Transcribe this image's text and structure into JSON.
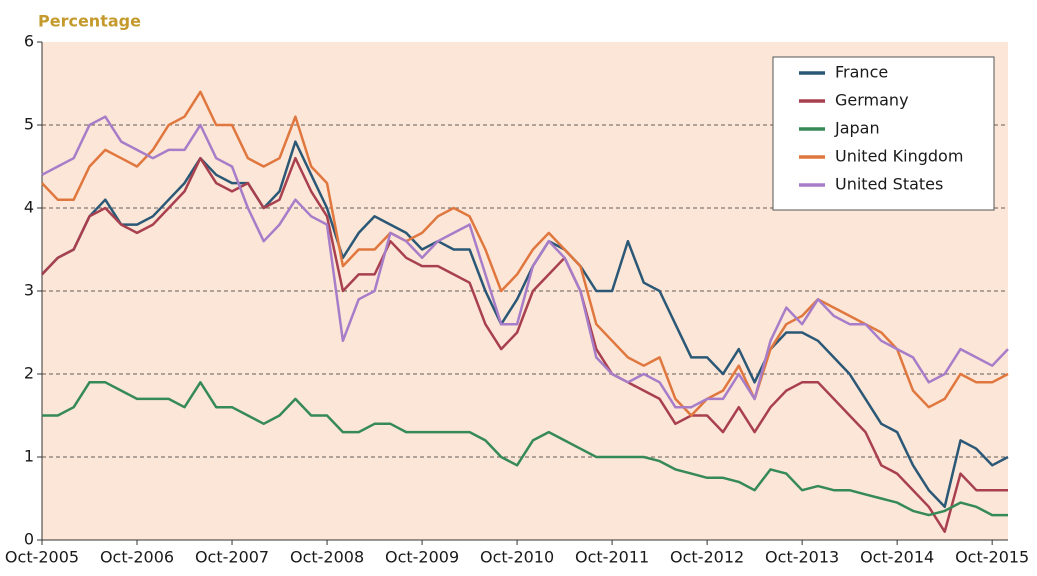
{
  "chart_data": {
    "type": "line",
    "axis_label": "Percentage",
    "x": [
      "2005-10",
      "2005-12",
      "2006-02",
      "2006-04",
      "2006-06",
      "2006-08",
      "2006-10",
      "2006-12",
      "2007-02",
      "2007-04",
      "2007-06",
      "2007-08",
      "2007-10",
      "2007-12",
      "2008-02",
      "2008-04",
      "2008-06",
      "2008-08",
      "2008-10",
      "2008-12",
      "2009-02",
      "2009-04",
      "2009-06",
      "2009-08",
      "2009-10",
      "2009-12",
      "2010-02",
      "2010-04",
      "2010-06",
      "2010-08",
      "2010-10",
      "2010-12",
      "2011-02",
      "2011-04",
      "2011-06",
      "2011-08",
      "2011-10",
      "2011-12",
      "2012-02",
      "2012-04",
      "2012-06",
      "2012-08",
      "2012-10",
      "2012-12",
      "2013-02",
      "2013-04",
      "2013-06",
      "2013-08",
      "2013-10",
      "2013-12",
      "2014-02",
      "2014-04",
      "2014-06",
      "2014-08",
      "2014-10",
      "2014-12",
      "2015-02",
      "2015-04",
      "2015-06",
      "2015-08",
      "2015-10",
      "2015-12"
    ],
    "series": [
      {
        "name": "France",
        "color": "#2b5876",
        "values": [
          3.2,
          3.4,
          3.5,
          3.9,
          4.1,
          3.8,
          3.8,
          3.9,
          4.1,
          4.3,
          4.6,
          4.4,
          4.3,
          4.3,
          4.0,
          4.2,
          4.8,
          4.4,
          4.0,
          3.4,
          3.7,
          3.9,
          3.8,
          3.7,
          3.5,
          3.6,
          3.5,
          3.5,
          3.0,
          2.6,
          2.9,
          3.3,
          3.6,
          3.5,
          3.3,
          3.0,
          3.0,
          3.6,
          3.1,
          3.0,
          2.6,
          2.2,
          2.2,
          2.0,
          2.3,
          1.9,
          2.3,
          2.5,
          2.5,
          2.4,
          2.2,
          2.0,
          1.7,
          1.4,
          1.3,
          0.9,
          0.6,
          0.4,
          1.2,
          1.1,
          0.9,
          1.0
        ]
      },
      {
        "name": "Germany",
        "color": "#a8404f",
        "values": [
          3.2,
          3.4,
          3.5,
          3.9,
          4.0,
          3.8,
          3.7,
          3.8,
          4.0,
          4.2,
          4.6,
          4.3,
          4.2,
          4.3,
          4.0,
          4.1,
          4.6,
          4.2,
          3.9,
          3.0,
          3.2,
          3.2,
          3.6,
          3.4,
          3.3,
          3.3,
          3.2,
          3.1,
          2.6,
          2.3,
          2.5,
          3.0,
          3.2,
          3.4,
          3.0,
          2.3,
          2.0,
          1.9,
          1.8,
          1.7,
          1.4,
          1.5,
          1.5,
          1.3,
          1.6,
          1.3,
          1.6,
          1.8,
          1.9,
          1.9,
          1.7,
          1.5,
          1.3,
          0.9,
          0.8,
          0.6,
          0.4,
          0.1,
          0.8,
          0.6,
          0.6,
          0.6
        ]
      },
      {
        "name": "Japan",
        "color": "#368a57",
        "values": [
          1.5,
          1.5,
          1.6,
          1.9,
          1.9,
          1.8,
          1.7,
          1.7,
          1.7,
          1.6,
          1.9,
          1.6,
          1.6,
          1.5,
          1.4,
          1.5,
          1.7,
          1.5,
          1.5,
          1.3,
          1.3,
          1.4,
          1.4,
          1.3,
          1.3,
          1.3,
          1.3,
          1.3,
          1.2,
          1.0,
          0.9,
          1.2,
          1.3,
          1.2,
          1.1,
          1.0,
          1.0,
          1.0,
          1.0,
          0.95,
          0.85,
          0.8,
          0.75,
          0.75,
          0.7,
          0.6,
          0.85,
          0.8,
          0.6,
          0.65,
          0.6,
          0.6,
          0.55,
          0.5,
          0.45,
          0.35,
          0.3,
          0.35,
          0.45,
          0.4,
          0.3,
          0.3
        ]
      },
      {
        "name": "United Kingdom",
        "color": "#e0773e",
        "values": [
          4.3,
          4.1,
          4.1,
          4.5,
          4.7,
          4.6,
          4.5,
          4.7,
          5.0,
          5.1,
          5.4,
          5.0,
          5.0,
          4.6,
          4.5,
          4.6,
          5.1,
          4.5,
          4.3,
          3.3,
          3.5,
          3.5,
          3.7,
          3.6,
          3.7,
          3.9,
          4.0,
          3.9,
          3.5,
          3.0,
          3.2,
          3.5,
          3.7,
          3.5,
          3.3,
          2.6,
          2.4,
          2.2,
          2.1,
          2.2,
          1.7,
          1.5,
          1.7,
          1.8,
          2.1,
          1.7,
          2.3,
          2.6,
          2.7,
          2.9,
          2.8,
          2.7,
          2.6,
          2.5,
          2.3,
          1.8,
          1.6,
          1.7,
          2.0,
          1.9,
          1.9,
          2.0
        ]
      },
      {
        "name": "United States",
        "color": "#a77dc9",
        "values": [
          4.4,
          4.5,
          4.6,
          5.0,
          5.1,
          4.8,
          4.7,
          4.6,
          4.7,
          4.7,
          5.0,
          4.6,
          4.5,
          4.0,
          3.6,
          3.8,
          4.1,
          3.9,
          3.8,
          2.4,
          2.9,
          3.0,
          3.7,
          3.6,
          3.4,
          3.6,
          3.7,
          3.8,
          3.2,
          2.6,
          2.6,
          3.3,
          3.6,
          3.4,
          3.0,
          2.2,
          2.0,
          1.9,
          2.0,
          1.9,
          1.6,
          1.6,
          1.7,
          1.7,
          2.0,
          1.7,
          2.4,
          2.8,
          2.6,
          2.9,
          2.7,
          2.6,
          2.6,
          2.4,
          2.3,
          2.2,
          1.9,
          2.0,
          2.3,
          2.2,
          2.1,
          2.3
        ]
      }
    ],
    "xlim": [
      "2005-10",
      "2015-12"
    ],
    "xticks": [
      {
        "value": "2005-10",
        "label": "Oct-2005"
      },
      {
        "value": "2006-10",
        "label": "Oct-2006"
      },
      {
        "value": "2007-10",
        "label": "Oct-2007"
      },
      {
        "value": "2008-10",
        "label": "Oct-2008"
      },
      {
        "value": "2009-10",
        "label": "Oct-2009"
      },
      {
        "value": "2010-10",
        "label": "Oct-2010"
      },
      {
        "value": "2011-10",
        "label": "Oct-2011"
      },
      {
        "value": "2012-10",
        "label": "Oct-2012"
      },
      {
        "value": "2013-10",
        "label": "Oct-2013"
      },
      {
        "value": "2014-10",
        "label": "Oct-2014"
      },
      {
        "value": "2015-10",
        "label": "Oct-2015"
      }
    ],
    "ylim": [
      0,
      6
    ],
    "yticks": [
      0,
      1,
      2,
      3,
      4,
      5,
      6
    ],
    "grid": true,
    "legend": "upper right"
  }
}
